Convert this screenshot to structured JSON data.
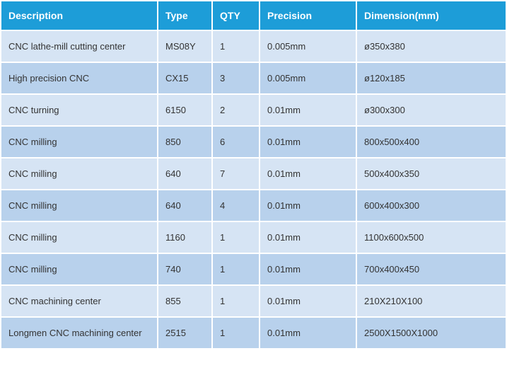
{
  "table": {
    "header_bg": "#1d9dd8",
    "header_color": "#ffffff",
    "row_colors": [
      "#d6e4f4",
      "#b8d1ec"
    ],
    "columns": [
      {
        "key": "description",
        "label": "Description"
      },
      {
        "key": "type",
        "label": "Type"
      },
      {
        "key": "qty",
        "label": "QTY"
      },
      {
        "key": "precision",
        "label": "Precision"
      },
      {
        "key": "dimension",
        "label": "Dimension(mm)"
      }
    ],
    "rows": [
      {
        "description": "CNC lathe-mill cutting center",
        "type": "MS08Y",
        "qty": "1",
        "precision": "0.005mm",
        "dimension": "ø350x380"
      },
      {
        "description": "High precision CNC",
        "type": "CX15",
        "qty": "3",
        "precision": "0.005mm",
        "dimension": "ø120x185"
      },
      {
        "description": "CNC turning",
        "type": "6150",
        "qty": "2",
        "precision": "0.01mm",
        "dimension": "ø300x300"
      },
      {
        "description": "CNC milling",
        "type": "850",
        "qty": "6",
        "precision": "0.01mm",
        "dimension": "800x500x400"
      },
      {
        "description": "CNC milling",
        "type": "640",
        "qty": "7",
        "precision": "0.01mm",
        "dimension": "500x400x350"
      },
      {
        "description": "CNC milling",
        "type": "640",
        "qty": "4",
        "precision": "0.01mm",
        "dimension": "600x400x300"
      },
      {
        "description": "CNC milling",
        "type": "1160",
        "qty": "1",
        "precision": "0.01mm",
        "dimension": "1100x600x500"
      },
      {
        "description": "CNC milling",
        "type": "740",
        "qty": "1",
        "precision": "0.01mm",
        "dimension": "700x400x450"
      },
      {
        "description": "CNC machining center",
        "type": "855",
        "qty": "1",
        "precision": "0.01mm",
        "dimension": "210X210X100"
      },
      {
        "description": "Longmen CNC machining center",
        "type": "2515",
        "qty": "1",
        "precision": "0.01mm",
        "dimension": "2500X1500X1000"
      }
    ]
  }
}
